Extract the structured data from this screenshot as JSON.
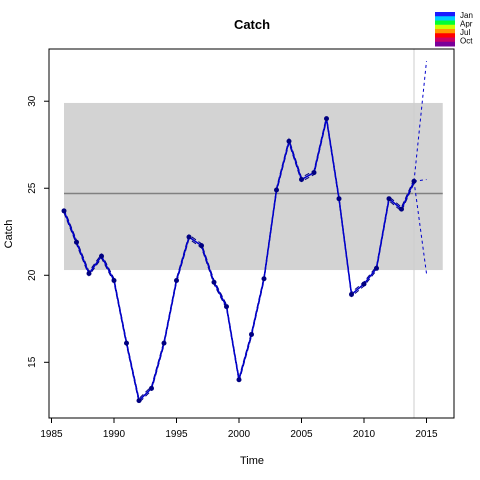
{
  "chart_data": {
    "type": "line",
    "title": "Catch",
    "xlabel": "Time",
    "ylabel": "Catch",
    "xlim": [
      1984.8,
      2017.2
    ],
    "ylim": [
      11.8,
      33.0
    ],
    "x_ticks": [
      1985,
      1990,
      1995,
      2000,
      2005,
      2010,
      2015
    ],
    "y_ticks": [
      15,
      20,
      25,
      30
    ],
    "band": {
      "x_start": 1986,
      "x_end": 2016.3,
      "lower": 20.3,
      "upper": 29.9
    },
    "mean_line": {
      "x_start": 1986,
      "x_end": 2016.3,
      "value": 24.7
    },
    "vertical_marker_x": 2014,
    "series": [
      {
        "x": [
          1986,
          1987,
          1988,
          1989,
          1990,
          1991,
          1992,
          1993,
          1994,
          1995,
          1996,
          1997,
          1998,
          1999,
          2000,
          2001,
          2002,
          2003,
          2004,
          2005,
          2006,
          2007,
          2008,
          2009,
          2010,
          2011,
          2012,
          2013,
          2014
        ],
        "values": [
          23.7,
          21.9,
          20.1,
          21.1,
          19.7,
          16.1,
          12.8,
          13.5,
          16.1,
          19.7,
          22.2,
          21.7,
          19.6,
          18.2,
          14.0,
          16.6,
          19.8,
          24.9,
          27.7,
          25.5,
          25.9,
          29.0,
          24.4,
          18.9,
          19.5,
          20.4,
          24.4,
          23.8,
          25.4
        ]
      }
    ],
    "projection": {
      "x": [
        2014,
        2015
      ],
      "upper": [
        25.4,
        32.3
      ],
      "mid": [
        25.4,
        25.5
      ],
      "lower": [
        25.4,
        20.1
      ]
    },
    "legend": {
      "labels": [
        "Jan",
        "Apr",
        "Jul",
        "Oct"
      ],
      "colors": [
        "#1a1aff",
        "#00ccff",
        "#00ff33",
        "#ccff00",
        "#ff9900",
        "#ff0000",
        "#cc0066",
        "#7a0099"
      ]
    },
    "colors": {
      "line": "#0000cc",
      "band": "#d3d3d3",
      "mean": "#808080",
      "marker": "#cccccc"
    }
  }
}
